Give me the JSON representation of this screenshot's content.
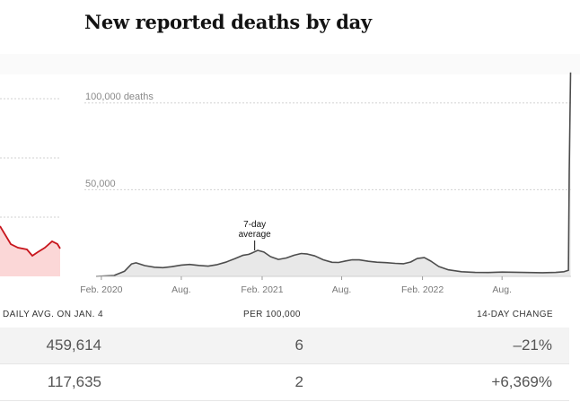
{
  "title": "New reported deaths by day",
  "table": {
    "headers": [
      "DAILY AVG. ON JAN. 4",
      "PER 100,000",
      "14-DAY CHANGE"
    ],
    "rows": [
      {
        "daily_avg": "459,614",
        "per_100k": "6",
        "change": "–21%"
      },
      {
        "daily_avg": "117,635",
        "per_100k": "2",
        "change": "+6,369%"
      }
    ]
  },
  "chart_data": {
    "type": "area",
    "ylabel": "",
    "y_tick_labels": [
      "100,000 deaths",
      "50,000"
    ],
    "y_ticks": [
      100000,
      50000
    ],
    "ylim": [
      0,
      118000
    ],
    "x_tick_labels": [
      "Feb. 2020",
      "Aug.",
      "Feb. 2021",
      "Aug.",
      "Feb. 2022",
      "Aug."
    ],
    "x_ticks": [
      "2020-02-01",
      "2020-08-01",
      "2021-02-01",
      "2021-08-01",
      "2022-02-01",
      "2022-08-01"
    ],
    "xlim": [
      "2020-01-20",
      "2023-01-05"
    ],
    "grid": true,
    "annotation": {
      "text_lines": [
        "7-day",
        "average"
      ],
      "date": "2021-01-15"
    },
    "series": [
      {
        "values": [
          [
            "2020-01-20",
            0
          ],
          [
            "2020-03-01",
            500
          ],
          [
            "2020-03-25",
            3000
          ],
          [
            "2020-04-10",
            7200
          ],
          [
            "2020-04-20",
            7800
          ],
          [
            "2020-05-10",
            6200
          ],
          [
            "2020-06-01",
            5300
          ],
          [
            "2020-06-20",
            5000
          ],
          [
            "2020-07-10",
            5600
          ],
          [
            "2020-08-01",
            6500
          ],
          [
            "2020-08-20",
            6900
          ],
          [
            "2020-09-10",
            6300
          ],
          [
            "2020-10-01",
            5900
          ],
          [
            "2020-10-20",
            6700
          ],
          [
            "2020-11-10",
            8200
          ],
          [
            "2020-12-01",
            10200
          ],
          [
            "2020-12-20",
            12200
          ],
          [
            "2021-01-01",
            12700
          ],
          [
            "2021-01-10",
            13600
          ],
          [
            "2021-01-22",
            15000
          ],
          [
            "2021-02-05",
            14000
          ],
          [
            "2021-02-20",
            11400
          ],
          [
            "2021-03-10",
            9800
          ],
          [
            "2021-03-28",
            10600
          ],
          [
            "2021-04-15",
            12200
          ],
          [
            "2021-05-01",
            13200
          ],
          [
            "2021-05-15",
            12900
          ],
          [
            "2021-06-01",
            11800
          ],
          [
            "2021-06-20",
            9600
          ],
          [
            "2021-07-10",
            8100
          ],
          [
            "2021-07-25",
            8000
          ],
          [
            "2021-08-10",
            8900
          ],
          [
            "2021-08-25",
            9600
          ],
          [
            "2021-09-10",
            9500
          ],
          [
            "2021-10-01",
            8700
          ],
          [
            "2021-10-20",
            8200
          ],
          [
            "2021-11-10",
            7900
          ],
          [
            "2021-12-01",
            7500
          ],
          [
            "2021-12-20",
            7300
          ],
          [
            "2022-01-05",
            8300
          ],
          [
            "2022-01-20",
            10300
          ],
          [
            "2022-02-05",
            10800
          ],
          [
            "2022-02-20",
            8800
          ],
          [
            "2022-03-10",
            5700
          ],
          [
            "2022-04-01",
            3800
          ],
          [
            "2022-05-01",
            2700
          ],
          [
            "2022-06-01",
            2300
          ],
          [
            "2022-07-01",
            2200
          ],
          [
            "2022-08-01",
            2500
          ],
          [
            "2022-09-01",
            2400
          ],
          [
            "2022-10-01",
            2200
          ],
          [
            "2022-11-01",
            2100
          ],
          [
            "2022-12-01",
            2300
          ],
          [
            "2022-12-20",
            2700
          ],
          [
            "2022-12-30",
            3500
          ],
          [
            "2023-01-01",
            60000
          ],
          [
            "2023-01-04",
            117635
          ]
        ]
      }
    ],
    "inset_series_color": "#c8161d",
    "line_color": "#4d4d4d",
    "fill_color": "#e8e8e8"
  }
}
